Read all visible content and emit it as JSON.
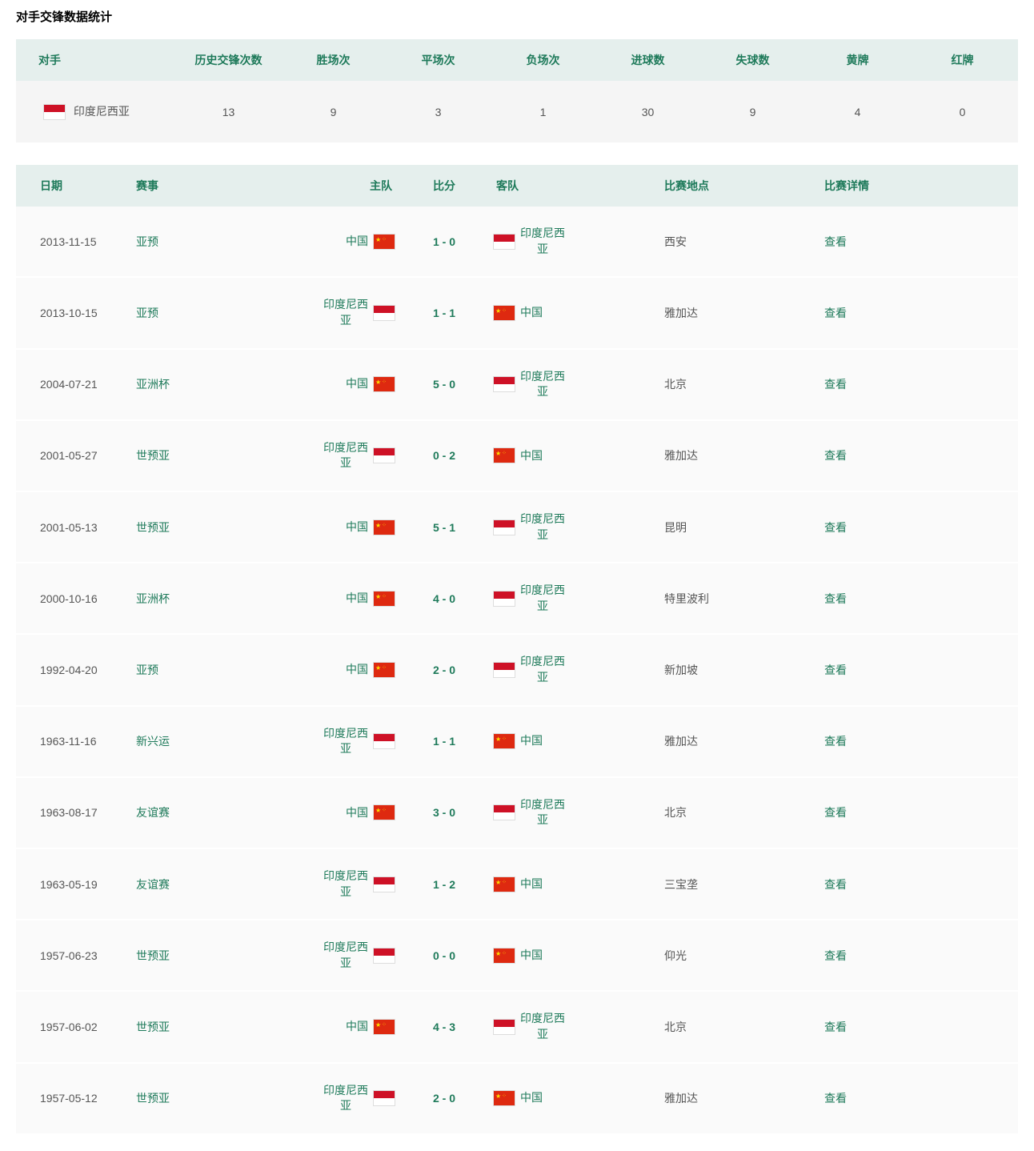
{
  "title": "对手交锋数据统计",
  "colors": {
    "header_bg": "#e5efed",
    "row_bg": "#fafafa",
    "stats_row_bg": "#f5f5f5",
    "accent": "#1e7a5a",
    "text": "#555555"
  },
  "stats_table": {
    "columns": [
      "对手",
      "历史交锋次数",
      "胜场次",
      "平场次",
      "负场次",
      "进球数",
      "失球数",
      "黄牌",
      "红牌"
    ],
    "row": {
      "opponent": "印度尼西亚",
      "opponent_flag": "indonesia",
      "total": "13",
      "wins": "9",
      "draws": "3",
      "losses": "1",
      "goals_for": "30",
      "goals_against": "9",
      "yellow": "4",
      "red": "0"
    }
  },
  "match_table": {
    "columns": [
      "日期",
      "赛事",
      "主队",
      "比分",
      "客队",
      "比赛地点",
      "比赛详情"
    ],
    "detail_label": "查看",
    "rows": [
      {
        "date": "2013-11-15",
        "event": "亚预",
        "home": "中国",
        "home_flag": "china",
        "score": "1 - 0",
        "away": "印度尼西亚",
        "away_flag": "indonesia",
        "venue": "西安"
      },
      {
        "date": "2013-10-15",
        "event": "亚预",
        "home": "印度尼西亚",
        "home_flag": "indonesia",
        "score": "1 - 1",
        "away": "中国",
        "away_flag": "china",
        "venue": "雅加达"
      },
      {
        "date": "2004-07-21",
        "event": "亚洲杯",
        "home": "中国",
        "home_flag": "china",
        "score": "5 - 0",
        "away": "印度尼西亚",
        "away_flag": "indonesia",
        "venue": "北京"
      },
      {
        "date": "2001-05-27",
        "event": "世预亚",
        "home": "印度尼西亚",
        "home_flag": "indonesia",
        "score": "0 - 2",
        "away": "中国",
        "away_flag": "china",
        "venue": "雅加达"
      },
      {
        "date": "2001-05-13",
        "event": "世预亚",
        "home": "中国",
        "home_flag": "china",
        "score": "5 - 1",
        "away": "印度尼西亚",
        "away_flag": "indonesia",
        "venue": "昆明"
      },
      {
        "date": "2000-10-16",
        "event": "亚洲杯",
        "home": "中国",
        "home_flag": "china",
        "score": "4 - 0",
        "away": "印度尼西亚",
        "away_flag": "indonesia",
        "venue": "特里波利"
      },
      {
        "date": "1992-04-20",
        "event": "亚预",
        "home": "中国",
        "home_flag": "china",
        "score": "2 - 0",
        "away": "印度尼西亚",
        "away_flag": "indonesia",
        "venue": "新加坡"
      },
      {
        "date": "1963-11-16",
        "event": "新兴运",
        "home": "印度尼西亚",
        "home_flag": "indonesia",
        "score": "1 - 1",
        "away": "中国",
        "away_flag": "china",
        "venue": "雅加达"
      },
      {
        "date": "1963-08-17",
        "event": "友谊赛",
        "home": "中国",
        "home_flag": "china",
        "score": "3 - 0",
        "away": "印度尼西亚",
        "away_flag": "indonesia",
        "venue": "北京"
      },
      {
        "date": "1963-05-19",
        "event": "友谊赛",
        "home": "印度尼西亚",
        "home_flag": "indonesia",
        "score": "1 - 2",
        "away": "中国",
        "away_flag": "china",
        "venue": "三宝垄"
      },
      {
        "date": "1957-06-23",
        "event": "世预亚",
        "home": "印度尼西亚",
        "home_flag": "indonesia",
        "score": "0 - 0",
        "away": "中国",
        "away_flag": "china",
        "venue": "仰光"
      },
      {
        "date": "1957-06-02",
        "event": "世预亚",
        "home": "中国",
        "home_flag": "china",
        "score": "4 - 3",
        "away": "印度尼西亚",
        "away_flag": "indonesia",
        "venue": "北京"
      },
      {
        "date": "1957-05-12",
        "event": "世预亚",
        "home": "印度尼西亚",
        "home_flag": "indonesia",
        "score": "2 - 0",
        "away": "中国",
        "away_flag": "china",
        "venue": "雅加达"
      }
    ]
  }
}
